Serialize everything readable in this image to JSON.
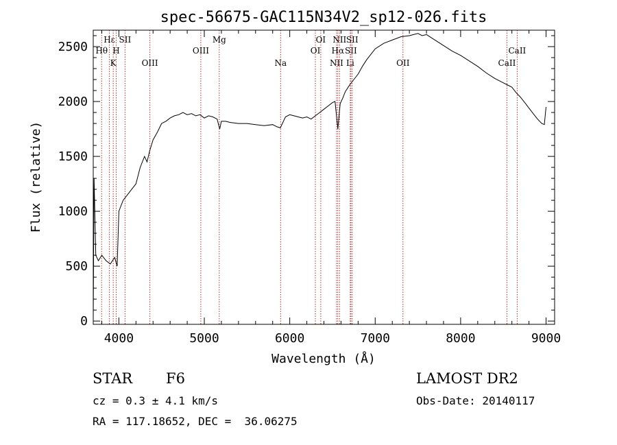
{
  "chart_data": {
    "type": "line",
    "title": "spec-56675-GAC115N34V2_sp12-026.fits",
    "xlabel": "Wavelength (Å)",
    "ylabel": "Flux (relative)",
    "xlim": [
      3700,
      9100
    ],
    "ylim": [
      -30,
      2650
    ],
    "xticks": [
      4000,
      5000,
      6000,
      7000,
      8000,
      9000
    ],
    "yticks": [
      0,
      500,
      1000,
      1500,
      2000,
      2500
    ],
    "grid": false,
    "series": [
      {
        "x": [
          3700,
          3710,
          3730,
          3760,
          3800,
          3850,
          3900,
          3950,
          3980,
          4000,
          4050,
          4100,
          4150,
          4200,
          4250,
          4300,
          4330,
          4360,
          4400,
          4450,
          4500,
          4550,
          4600,
          4650,
          4700,
          4750,
          4800,
          4850,
          4900,
          4950,
          5000,
          5050,
          5100,
          5150,
          5180,
          5200,
          5250,
          5300,
          5400,
          5500,
          5600,
          5700,
          5800,
          5850,
          5890,
          5950,
          6000,
          6050,
          6100,
          6150,
          6200,
          6250,
          6300,
          6350,
          6400,
          6450,
          6500,
          6530,
          6563,
          6590,
          6620,
          6650,
          6700,
          6750,
          6800,
          6850,
          6900,
          6950,
          7000,
          7100,
          7200,
          7300,
          7400,
          7450,
          7500,
          7550,
          7600,
          7700,
          7800,
          7900,
          8000,
          8100,
          8200,
          8300,
          8400,
          8500,
          8550,
          8600,
          8650,
          8700,
          8750,
          8800,
          8850,
          8900,
          8950,
          8980,
          9000
        ],
        "y": [
          0,
          1300,
          600,
          550,
          600,
          550,
          520,
          580,
          500,
          1000,
          1100,
          1150,
          1200,
          1250,
          1400,
          1500,
          1450,
          1550,
          1650,
          1720,
          1800,
          1820,
          1850,
          1870,
          1880,
          1900,
          1880,
          1890,
          1870,
          1880,
          1850,
          1870,
          1860,
          1840,
          1750,
          1820,
          1820,
          1810,
          1800,
          1800,
          1790,
          1780,
          1790,
          1770,
          1760,
          1860,
          1880,
          1870,
          1860,
          1850,
          1860,
          1840,
          1870,
          1900,
          1930,
          1960,
          1990,
          2000,
          1750,
          1980,
          2030,
          2090,
          2150,
          2200,
          2250,
          2320,
          2380,
          2430,
          2480,
          2530,
          2560,
          2590,
          2600,
          2610,
          2620,
          2600,
          2610,
          2560,
          2510,
          2460,
          2420,
          2370,
          2320,
          2260,
          2210,
          2170,
          2150,
          2130,
          2080,
          2040,
          1990,
          1940,
          1890,
          1840,
          1800,
          1790,
          1950
        ]
      }
    ],
    "spectral_lines": [
      {
        "label": "Hθ",
        "x": 3798,
        "row": 2
      },
      {
        "label": "Hε",
        "x": 3889,
        "row": 1
      },
      {
        "label": "K",
        "x": 3934,
        "row": 3
      },
      {
        "label": "H",
        "x": 3969,
        "row": 2
      },
      {
        "label": "SII",
        "x": 4072,
        "row": 1
      },
      {
        "label": "OIII",
        "x": 4363,
        "row": 3
      },
      {
        "label": "OIII",
        "x": 4959,
        "row": 2
      },
      {
        "label": "Mg",
        "x": 5175,
        "row": 1
      },
      {
        "label": "Na",
        "x": 5893,
        "row": 3
      },
      {
        "label": "OI",
        "x": 6300,
        "row": 2
      },
      {
        "label": "OI",
        "x": 6363,
        "row": 1
      },
      {
        "label": "NII",
        "x": 6548,
        "row": 3
      },
      {
        "label": "Hα",
        "x": 6563,
        "row": 2
      },
      {
        "label": "NII",
        "x": 6583,
        "row": 1
      },
      {
        "label": "Li",
        "x": 6708,
        "row": 3
      },
      {
        "label": "SII",
        "x": 6716,
        "row": 2
      },
      {
        "label": "SII",
        "x": 6731,
        "row": 1
      },
      {
        "label": "OII",
        "x": 7325,
        "row": 3
      },
      {
        "label": "CaII",
        "x": 8542,
        "row": 3
      },
      {
        "label": "CaII",
        "x": 8662,
        "row": 2
      }
    ]
  },
  "info": {
    "object_type": "STAR",
    "subclass": "F6",
    "survey": "LAMOST DR2",
    "cz": "cz = 0.3 ± 4.1 km/s",
    "obs_date": "Obs-Date: 20140117",
    "coords": "RA = 117.18652, DEC =  36.06275"
  },
  "colors": {
    "line_marker": "#b03030",
    "spectrum": "#000000"
  }
}
